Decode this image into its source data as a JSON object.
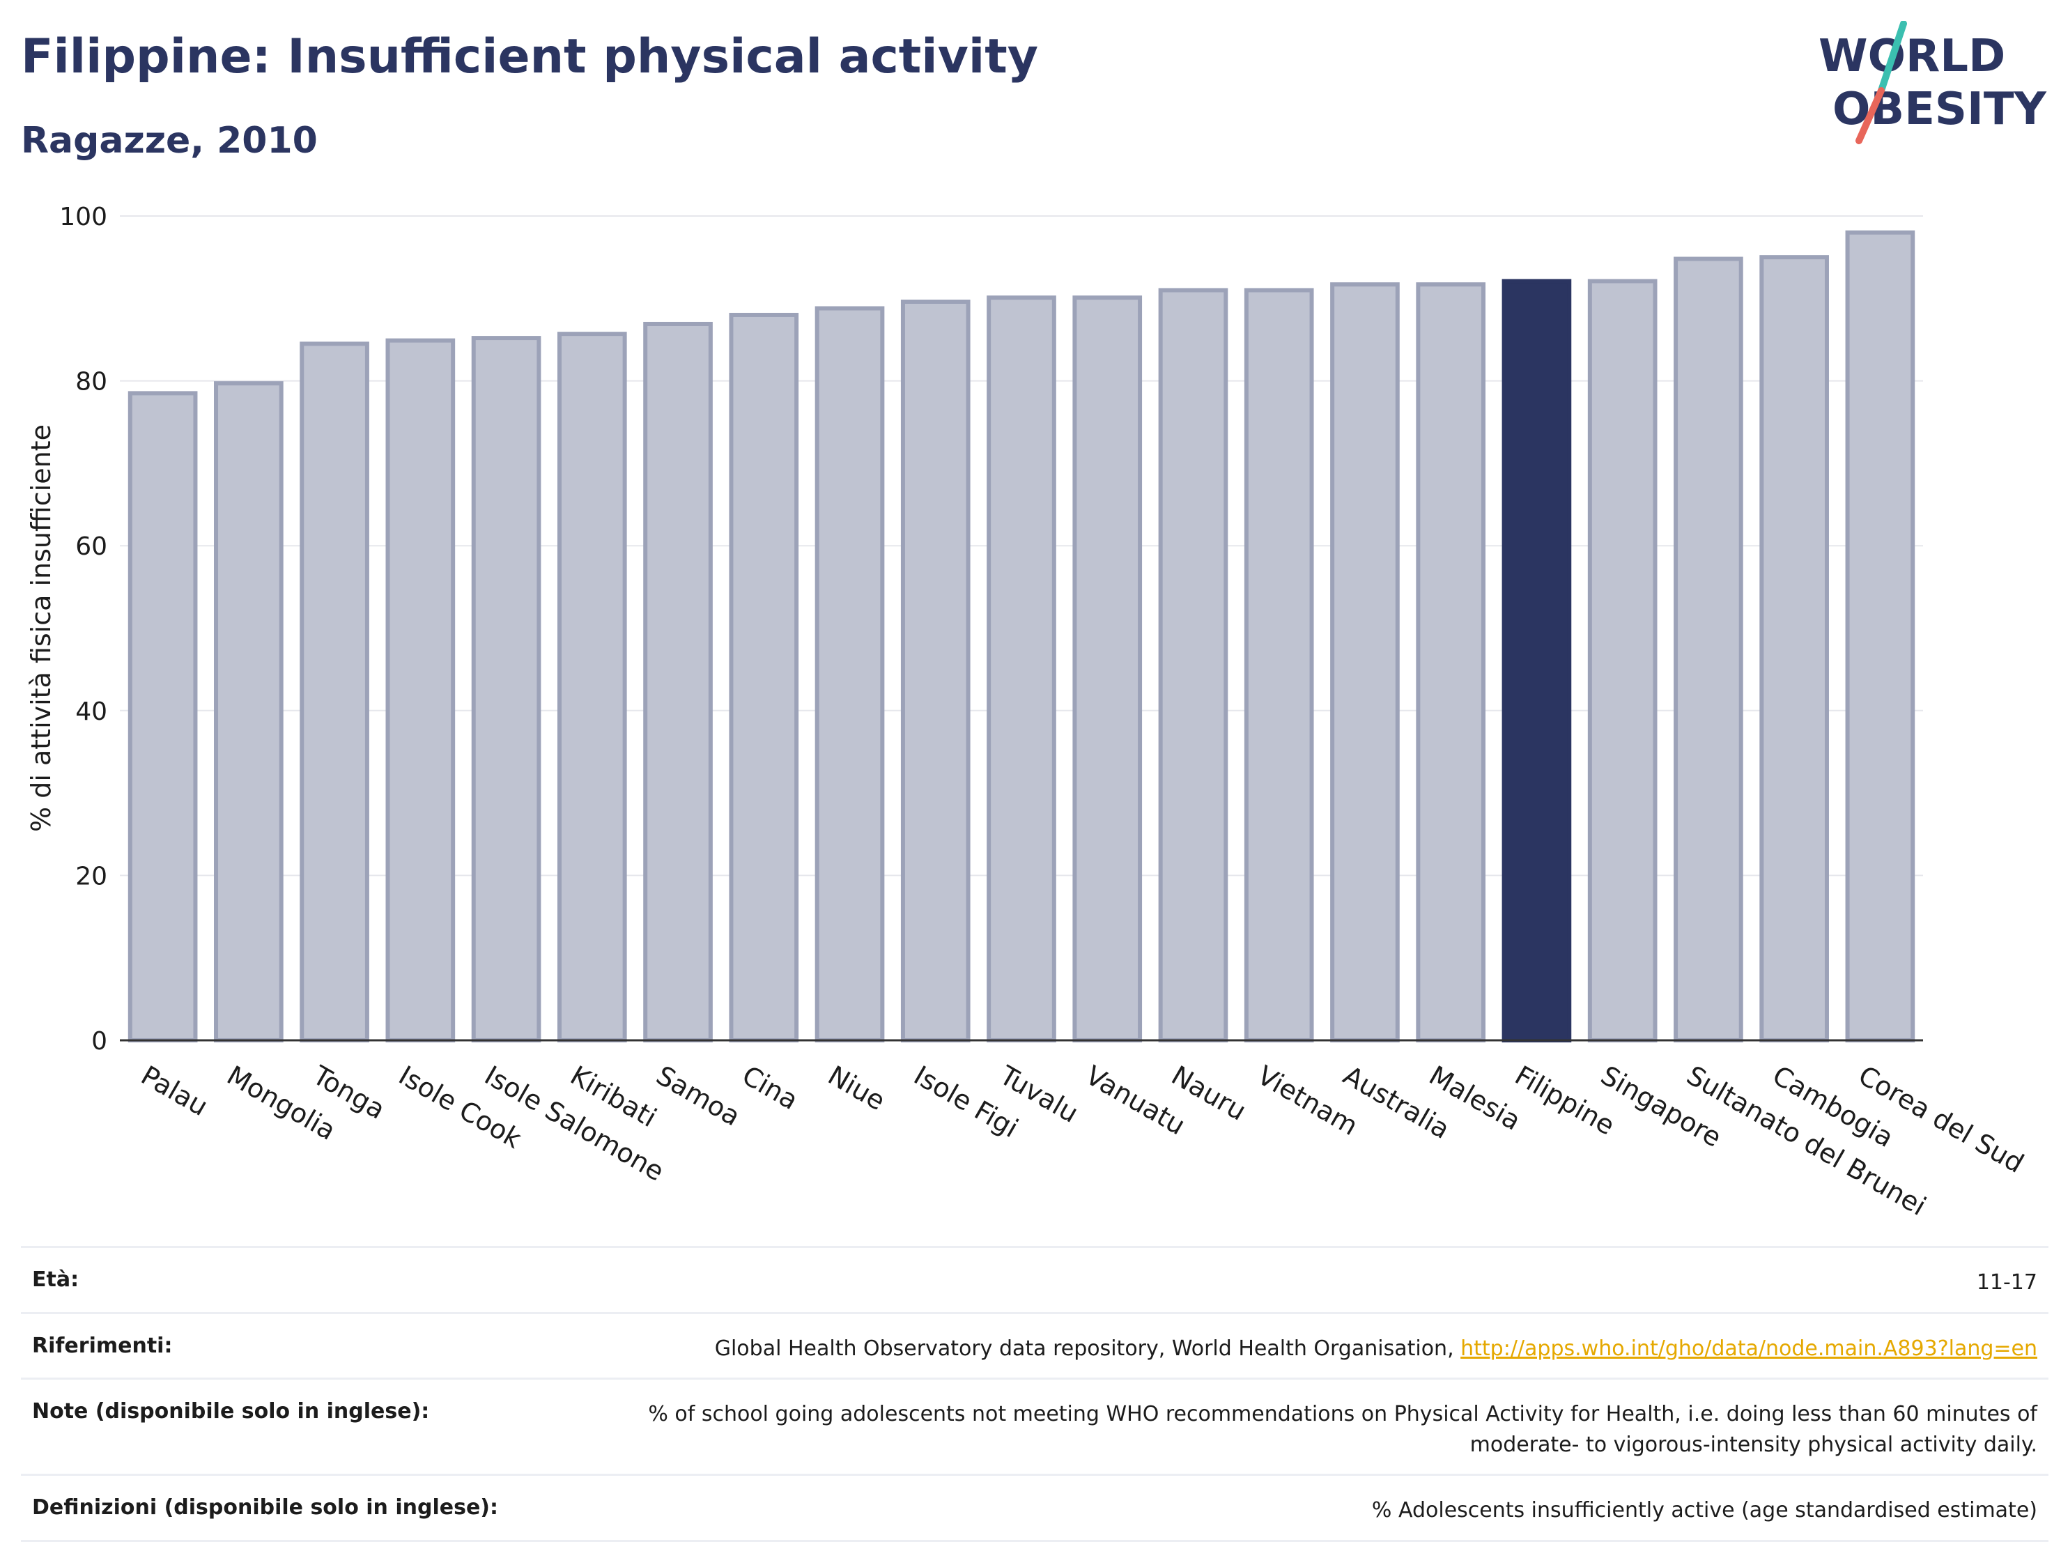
{
  "header": {
    "title": "Filippine: Insufficient physical activity",
    "subtitle": "Ragazze, 2010"
  },
  "logo": {
    "line1": "WORLD",
    "line2": "OBESITY",
    "colors": {
      "text": "#2b3561",
      "slash_top": "#3bbfb0",
      "slash_bottom": "#e8665a"
    }
  },
  "chart_data": {
    "type": "bar",
    "title": "",
    "xlabel": "",
    "ylabel": "% di attività fisica insufficiente",
    "ylim": [
      0,
      100
    ],
    "yticks": [
      0,
      20,
      40,
      60,
      80,
      100
    ],
    "grid": true,
    "categories": [
      "Palau",
      "Mongolia",
      "Tonga",
      "Isole Cook",
      "Isole Salomone",
      "Kiribati",
      "Samoa",
      "Cina",
      "Niue",
      "Isole Figi",
      "Tuvalu",
      "Vanuatu",
      "Nauru",
      "Vietnam",
      "Australia",
      "Malesia",
      "Filippine",
      "Singapore",
      "Sultanato del Brunei",
      "Cambogia",
      "Corea del Sud"
    ],
    "values": [
      78.5,
      79.7,
      84.5,
      84.9,
      85.2,
      85.7,
      86.9,
      88.0,
      88.8,
      89.6,
      90.1,
      90.1,
      91.0,
      91.0,
      91.7,
      91.7,
      92.1,
      92.1,
      94.8,
      95.0,
      98.0
    ],
    "highlight": "Filippine",
    "colors": {
      "bar": "#bfc3d1",
      "bar_border": "#9ca2b8",
      "highlight": "#2b3561"
    }
  },
  "info": {
    "age_label": "Età:",
    "age_value": "11-17",
    "refs_label": "Riferimenti:",
    "refs_text": "Global Health Observatory data repository, World Health Organisation, ",
    "refs_link": "http://apps.who.int/gho/data/node.main.A893?lang=en",
    "notes_label": "Note (disponibile solo in inglese):",
    "notes_value": "% of school going adolescents not meeting WHO recommendations on Physical Activity for Health, i.e. doing less than 60 minutes of moderate- to vigorous-intensity physical activity daily.",
    "defs_label": "Definizioni (disponibile solo in inglese):",
    "defs_value": "% Adolescents insufficiently active (age standardised estimate)"
  }
}
